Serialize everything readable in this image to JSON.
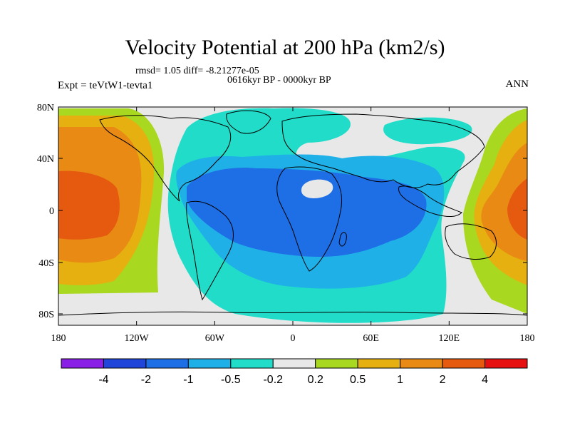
{
  "title": "Velocity Potential at 200 hPa (km2/s)",
  "stats": "rmsd= 1.05 diff= -8.21277e-05",
  "period": "0616kyr BP - 0000kyr BP",
  "experiment": "Expt = teVtW1-tevta1",
  "season": "ANN",
  "lat_ticks": [
    "80N",
    "40N",
    "0",
    "40S",
    "80S"
  ],
  "lon_ticks": [
    "180",
    "120W",
    "60W",
    "0",
    "60E",
    "120E",
    "180"
  ],
  "colorbar": {
    "labels": [
      "-4",
      "-2",
      "-1",
      "-0.5",
      "-0.2",
      "0.2",
      "0.5",
      "1",
      "2",
      "4"
    ],
    "colors": [
      "#8a1fe6",
      "#1f46d9",
      "#1e6ee6",
      "#20b0e8",
      "#20dcc8",
      "#e8e8e8",
      "#a8d820",
      "#e6b010",
      "#e88a14",
      "#e65a10",
      "#e61010"
    ]
  },
  "map_colors": {
    "ocean_fill": "#e8e8e8",
    "neg_weak": "#20dcc8",
    "neg_mid": "#20b0e8",
    "neg_strong": "#1e6ee6",
    "pos_weak": "#a8d820",
    "pos_mid": "#e6b010",
    "pos_strong": "#e88a14",
    "pos_max": "#e65a10"
  }
}
